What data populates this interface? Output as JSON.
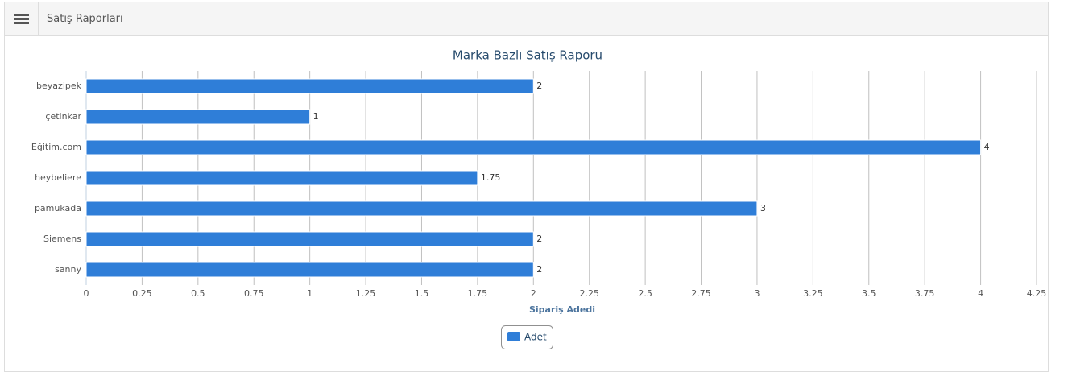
{
  "panel": {
    "title": "Satış Raporları"
  },
  "chart_data": {
    "type": "bar",
    "orientation": "horizontal",
    "title": "Marka Bazlı Satış Raporu",
    "x_label": "Sipariş Adedi",
    "categories": [
      "beyazipek",
      "çetinkar",
      "Eğitim.com",
      "heybeliere",
      "pamukada",
      "Siemens",
      "sanny"
    ],
    "series": [
      {
        "name": "Adet",
        "color": "#2f7ed8",
        "values": [
          2,
          1,
          4,
          1.75,
          3,
          2,
          2
        ]
      }
    ],
    "xlim": [
      0,
      4.25
    ],
    "xticks": [
      0,
      0.25,
      0.5,
      0.75,
      1,
      1.25,
      1.5,
      1.75,
      2,
      2.25,
      2.5,
      2.75,
      3,
      3.25,
      3.5,
      3.75,
      4,
      4.25
    ],
    "grid": true,
    "legend": "bottom"
  }
}
